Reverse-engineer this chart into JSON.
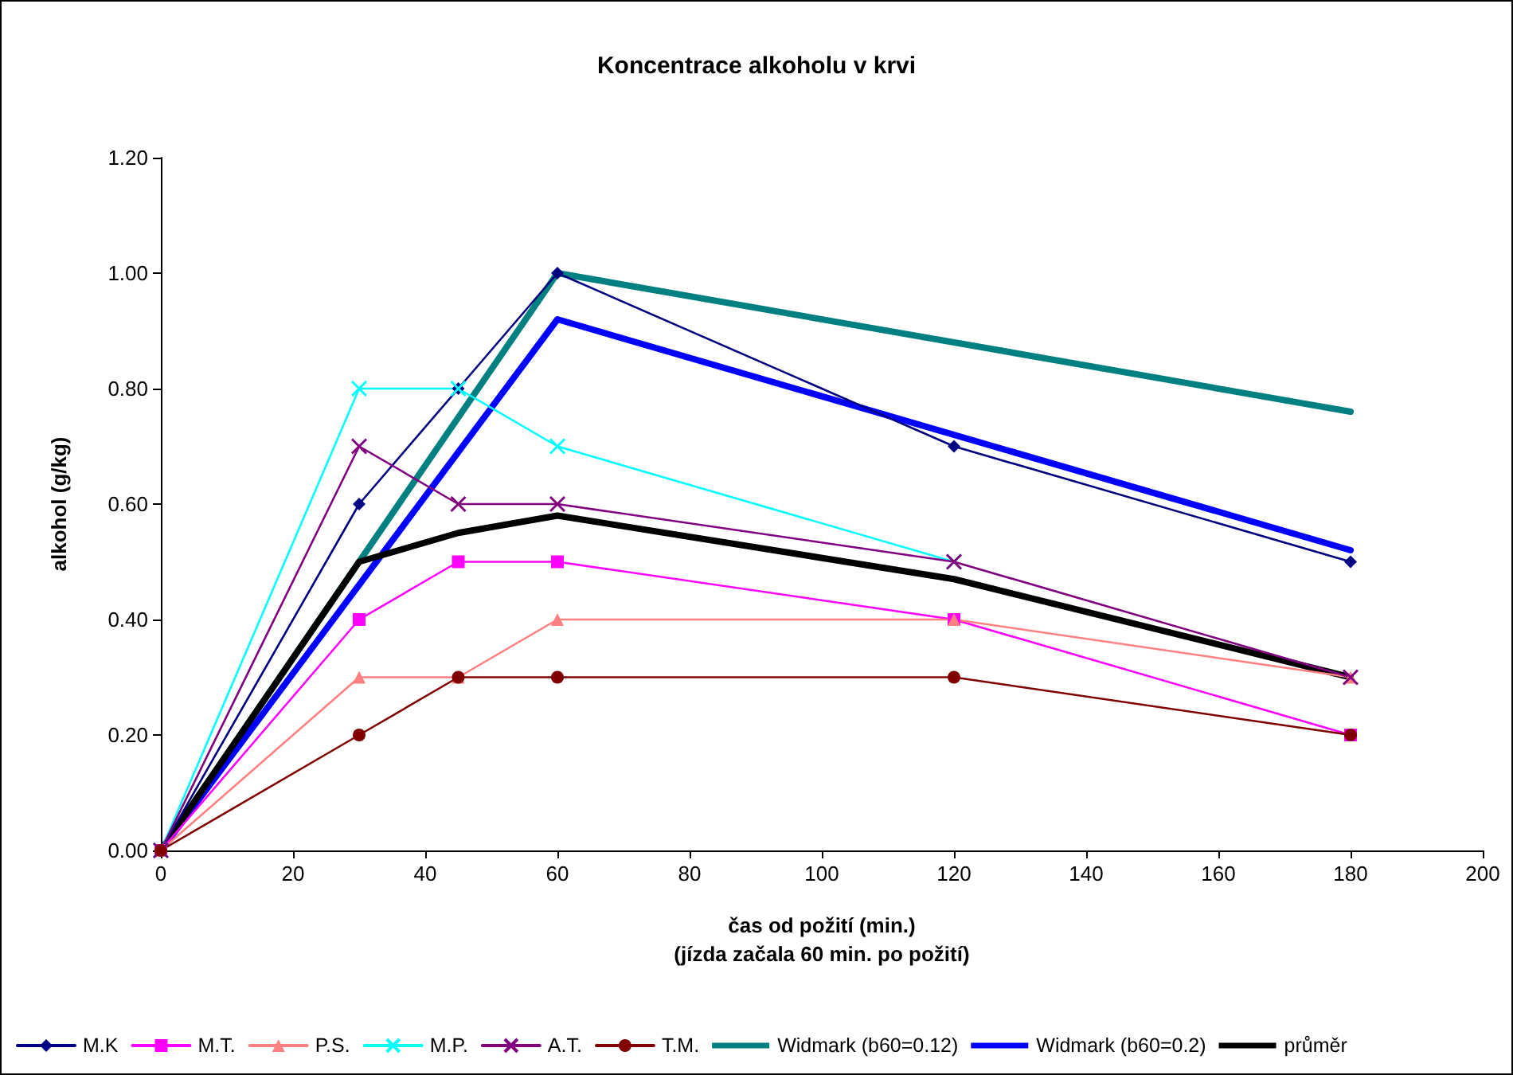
{
  "chart_data": {
    "type": "line",
    "title": "Koncentrace alkoholu v krvi",
    "xlabel": "čas od požití (min.)\n(jízda začala 60 min. po požití)",
    "ylabel": "alkohol (g/kg)",
    "x": [
      0,
      30,
      45,
      60,
      120,
      180
    ],
    "series": [
      {
        "name": "M.K",
        "color": "#000080",
        "marker": "diamond",
        "values": [
          0,
          0.6,
          0.8,
          1.0,
          0.7,
          0.5
        ]
      },
      {
        "name": "M.T.",
        "color": "#ff00ff",
        "marker": "square",
        "values": [
          0,
          0.4,
          0.5,
          0.5,
          0.4,
          0.2
        ]
      },
      {
        "name": "P.S.",
        "color": "#ff8080",
        "marker": "triangle",
        "values": [
          0,
          0.3,
          0.3,
          0.4,
          0.4,
          0.3
        ]
      },
      {
        "name": "M.P.",
        "color": "#00ffff",
        "marker": "cross",
        "values": [
          0,
          0.8,
          0.8,
          0.7,
          0.5,
          null
        ]
      },
      {
        "name": "A.T.",
        "color": "#800080",
        "marker": "cross",
        "values": [
          0,
          0.7,
          0.6,
          0.6,
          0.5,
          0.3
        ]
      },
      {
        "name": "T.M.",
        "color": "#800000",
        "marker": "circle",
        "values": [
          0,
          0.2,
          0.3,
          0.3,
          0.3,
          0.2
        ]
      },
      {
        "name": "Widmark (b60=0.12)",
        "color": "#008080",
        "marker": "none",
        "x": [
          0,
          60,
          180
        ],
        "values": [
          0,
          1.0,
          0.76
        ]
      },
      {
        "name": "Widmark (b60=0.2)",
        "color": "#0000ff",
        "marker": "none",
        "x": [
          0,
          60,
          180
        ],
        "values": [
          0,
          0.92,
          0.52
        ]
      },
      {
        "name": "průměr",
        "color": "#000000",
        "marker": "none",
        "values": [
          0,
          0.5,
          0.55,
          0.58,
          0.47,
          0.3
        ]
      }
    ],
    "xlim": [
      0,
      200
    ],
    "xticks": [
      0,
      20,
      40,
      60,
      80,
      100,
      120,
      140,
      160,
      180,
      200
    ],
    "ylim": [
      0,
      1.2
    ],
    "yticks": [
      {
        "value": 0,
        "label": "0.00"
      },
      {
        "value": 0.2,
        "label": "0.20"
      },
      {
        "value": 0.4,
        "label": "0.40"
      },
      {
        "value": 0.6,
        "label": "0.60"
      },
      {
        "value": 0.8,
        "label": "0.80"
      },
      {
        "value": 1.0,
        "label": "1.00"
      },
      {
        "value": 1.2,
        "label": "1.20"
      }
    ],
    "grid": false,
    "legend": "bottom"
  }
}
